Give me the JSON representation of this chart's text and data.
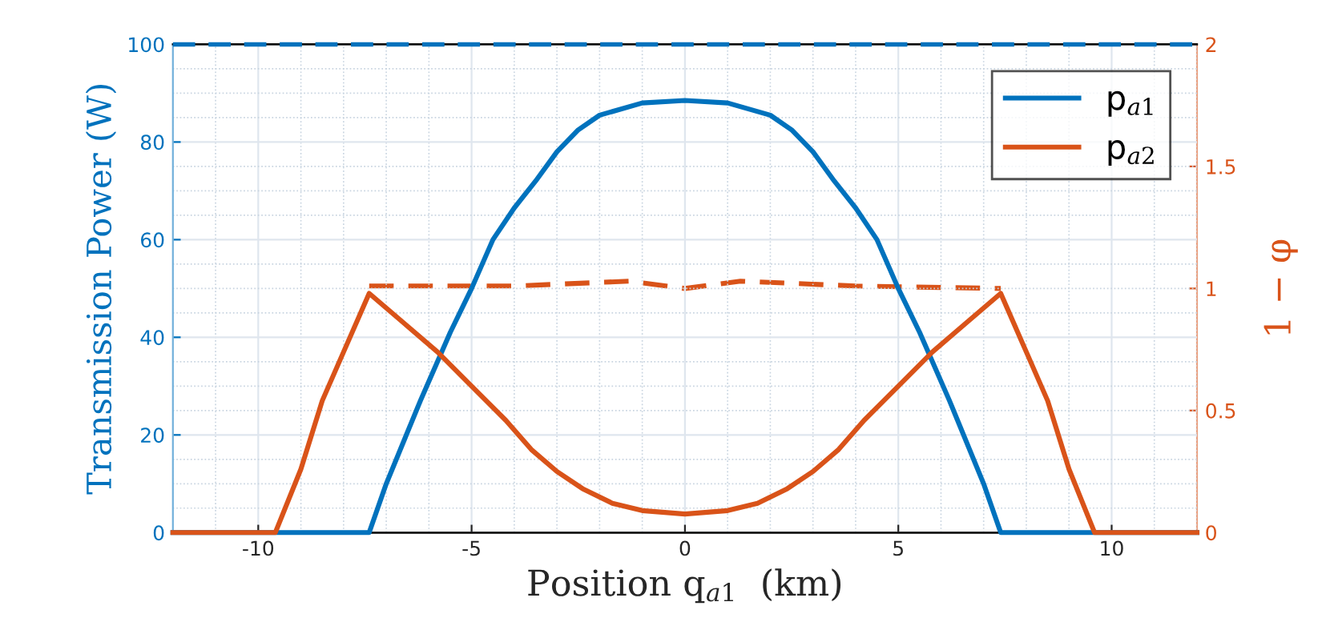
{
  "chart_data": {
    "type": "line",
    "xlabel": "Position q$_{a1}$  (km)",
    "ylabel": "Transmission Power (W)",
    "y2label": "1 − φ",
    "xlim": [
      -12,
      12
    ],
    "xticks": [
      -10,
      -5,
      0,
      5,
      10
    ],
    "ylim": [
      0,
      100
    ],
    "yticks": [
      0,
      20,
      40,
      60,
      80,
      100
    ],
    "y2lim": [
      0,
      2
    ],
    "y2ticks": [
      0,
      0.5,
      1,
      1.5,
      2
    ],
    "grid": true,
    "legend": "top right",
    "line_style": "solid",
    "marker": "none",
    "ref_lines": [
      {
        "axis": "y",
        "value": 100,
        "color": "#0072bd",
        "line_style": "dashed"
      }
    ],
    "series": [
      {
        "name": "p$_{a1}$",
        "color": "#0072bd",
        "x": [
          -12,
          -7.4,
          -7,
          -6.2,
          -5.5,
          -5,
          -4.5,
          -4,
          -3.5,
          -3,
          -2.5,
          -2,
          -1,
          0,
          1,
          2,
          2.5,
          3,
          3.5,
          4,
          4.5,
          5,
          5.5,
          6.2,
          7,
          7.4,
          12
        ],
        "values": [
          0,
          0,
          10,
          27,
          41,
          50,
          60,
          66.5,
          72,
          78,
          82.5,
          85.5,
          88,
          88.5,
          88,
          85.5,
          82.5,
          78,
          72,
          66.5,
          60,
          50,
          41,
          27,
          10,
          0,
          0
        ]
      },
      {
        "name": "p$_{a2}$",
        "color": "#d95319",
        "x": [
          -12,
          -9.6,
          -9,
          -8.5,
          -8,
          -7.4,
          -6.6,
          -5.8,
          -5,
          -4.2,
          -3.6,
          -3,
          -2.4,
          -1.7,
          -1,
          0,
          1,
          1.7,
          2.4,
          3,
          3.6,
          4.2,
          5,
          5.8,
          6.6,
          7.4,
          8,
          8.5,
          9,
          9.6,
          12
        ],
        "values": [
          0,
          0,
          13,
          27,
          37,
          49,
          43,
          37,
          30,
          23,
          17,
          12.5,
          9,
          6,
          4.5,
          3.8,
          4.5,
          6,
          9,
          12.5,
          17,
          23,
          30,
          37,
          43,
          49,
          37,
          27,
          13,
          0,
          0
        ]
      },
      {
        "color": "#d95319",
        "axis": "y2",
        "line_style": "dashed",
        "x": [
          -7.4,
          -4,
          -1.3,
          0,
          1.3,
          4,
          7.4
        ],
        "values": [
          1.01,
          1.01,
          1.03,
          1.0,
          1.03,
          1.01,
          1.0
        ]
      }
    ]
  }
}
